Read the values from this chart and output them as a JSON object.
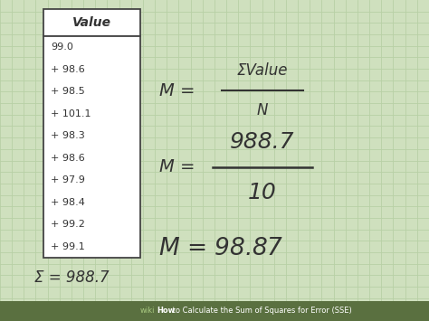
{
  "bg_color": "#cfe0be",
  "grid_color": "#b8d0a5",
  "table_values": [
    "Value",
    "99.0",
    "+ 98.6",
    "+ 98.5",
    "+ 101.1",
    "+ 98.3",
    "+ 98.6",
    "+ 97.9",
    "+ 98.4",
    "+ 99.2",
    "+ 99.1"
  ],
  "sum_label": "Σ = 988.7",
  "formula1_num": "ΣValue",
  "formula1_den": "N",
  "formula2_num": "988.7",
  "formula2_den": "10",
  "footer_wiki": "wiki",
  "footer_how": "How",
  "footer_rest": " to Calculate the Sum of Squares for Error (SSE)",
  "footer_bg": "#5a7040",
  "table_border_color": "#444444",
  "text_color": "#333333"
}
